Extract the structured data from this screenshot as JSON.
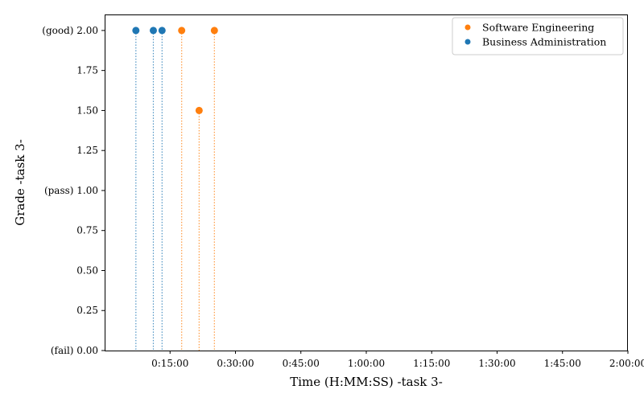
{
  "chart_data": {
    "type": "scatter",
    "title": "",
    "xlabel": "Time (H:MM:SS) -task 3-",
    "ylabel": "Grade -task 3-",
    "xlim_seconds": [
      0,
      7200
    ],
    "ylim": [
      0,
      2.1
    ],
    "x_ticks": [
      {
        "value": 900,
        "label": "0:15:00"
      },
      {
        "value": 1800,
        "label": "0:30:00"
      },
      {
        "value": 2700,
        "label": "0:45:00"
      },
      {
        "value": 3600,
        "label": "1:00:00"
      },
      {
        "value": 4500,
        "label": "1:15:00"
      },
      {
        "value": 5400,
        "label": "1:30:00"
      },
      {
        "value": 6300,
        "label": "1:45:00"
      },
      {
        "value": 7200,
        "label": "2:00:00"
      }
    ],
    "y_ticks": [
      {
        "value": 0.0,
        "label": "(fail) 0.00"
      },
      {
        "value": 0.25,
        "label": "0.25"
      },
      {
        "value": 0.5,
        "label": "0.50"
      },
      {
        "value": 0.75,
        "label": "0.75"
      },
      {
        "value": 1.0,
        "label": "(pass) 1.00"
      },
      {
        "value": 1.25,
        "label": "1.25"
      },
      {
        "value": 1.5,
        "label": "1.50"
      },
      {
        "value": 1.75,
        "label": "1.75"
      },
      {
        "value": 2.0,
        "label": "(good) 2.00"
      }
    ],
    "legend_position": "top-right",
    "grid": false,
    "series": [
      {
        "name": "Software Engineering",
        "color": "#ff7f0e",
        "points": [
          {
            "x": "0:17:40",
            "x_seconds": 1060,
            "y": 2.0
          },
          {
            "x": "0:21:40",
            "x_seconds": 1300,
            "y": 1.5
          },
          {
            "x": "0:25:10",
            "x_seconds": 1510,
            "y": 2.0
          }
        ]
      },
      {
        "name": "Business Administration",
        "color": "#1f77b4",
        "points": [
          {
            "x": "0:07:10",
            "x_seconds": 430,
            "y": 2.0
          },
          {
            "x": "0:11:10",
            "x_seconds": 670,
            "y": 2.0
          },
          {
            "x": "0:13:10",
            "x_seconds": 790,
            "y": 2.0
          }
        ]
      }
    ]
  }
}
